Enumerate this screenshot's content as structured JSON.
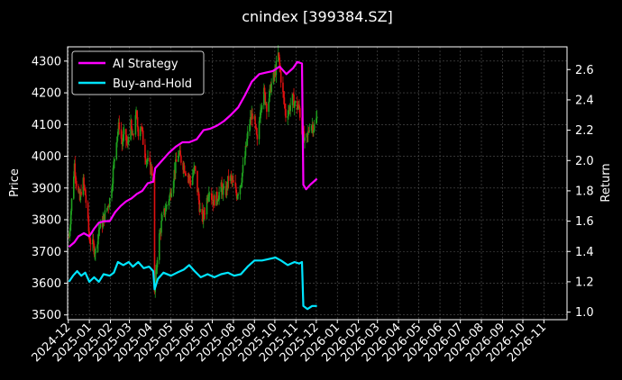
{
  "chart_data": {
    "type": "line",
    "title": "cnindex [399384.SZ]",
    "ylabel_left": "Price",
    "ylabel_right": "Return",
    "left_ylim": [
      3485,
      4345
    ],
    "right_ylim": [
      0.95,
      2.75
    ],
    "left_yticks": [
      3500,
      3600,
      3700,
      3800,
      3900,
      4000,
      4100,
      4200,
      4300
    ],
    "right_yticks": [
      1.0,
      1.2,
      1.4,
      1.6,
      1.8,
      2.0,
      2.2,
      2.4,
      2.6
    ],
    "x_range": [
      "2024-11-30",
      "2026-12-05"
    ],
    "x_ticks": [
      "2024-12",
      "2025-01",
      "2025-02",
      "2025-03",
      "2025-04",
      "2025-05",
      "2025-06",
      "2025-07",
      "2025-08",
      "2025-09",
      "2025-10",
      "2025-11",
      "2025-12",
      "2026-01",
      "2026-02",
      "2026-03",
      "2026-04",
      "2026-05",
      "2026-06",
      "2026-07",
      "2026-08",
      "2026-09",
      "2026-10",
      "2026-11"
    ],
    "grid": true,
    "legend_position": "top-left",
    "colors": {
      "up": "#1fa01f",
      "down": "#e01010",
      "strategy": "#ff00ff",
      "buyhold": "#00e5ff",
      "grid": "#555555",
      "text": "#ffffff"
    },
    "series": [
      {
        "name": "AI Strategy",
        "axis": "right",
        "points": [
          [
            "2024-12-02",
            1.43
          ],
          [
            "2024-12-10",
            1.46
          ],
          [
            "2024-12-16",
            1.5
          ],
          [
            "2024-12-24",
            1.52
          ],
          [
            "2025-01-01",
            1.5
          ],
          [
            "2025-01-08",
            1.55
          ],
          [
            "2025-01-15",
            1.59
          ],
          [
            "2025-01-23",
            1.6
          ],
          [
            "2025-01-31",
            1.6
          ],
          [
            "2025-02-08",
            1.66
          ],
          [
            "2025-02-16",
            1.7
          ],
          [
            "2025-02-24",
            1.73
          ],
          [
            "2025-03-04",
            1.75
          ],
          [
            "2025-03-12",
            1.78
          ],
          [
            "2025-03-20",
            1.8
          ],
          [
            "2025-03-28",
            1.85
          ],
          [
            "2025-04-05",
            1.86
          ],
          [
            "2025-04-08",
            1.95
          ],
          [
            "2025-04-18",
            2.0
          ],
          [
            "2025-04-28",
            2.05
          ],
          [
            "2025-05-08",
            2.09
          ],
          [
            "2025-05-18",
            2.12
          ],
          [
            "2025-05-28",
            2.12
          ],
          [
            "2025-06-08",
            2.14
          ],
          [
            "2025-06-18",
            2.2
          ],
          [
            "2025-06-28",
            2.21
          ],
          [
            "2025-07-08",
            2.23
          ],
          [
            "2025-07-18",
            2.26
          ],
          [
            "2025-07-28",
            2.3
          ],
          [
            "2025-08-08",
            2.35
          ],
          [
            "2025-08-18",
            2.43
          ],
          [
            "2025-08-28",
            2.52
          ],
          [
            "2025-09-08",
            2.57
          ],
          [
            "2025-09-18",
            2.58
          ],
          [
            "2025-09-28",
            2.59
          ],
          [
            "2025-10-08",
            2.62
          ],
          [
            "2025-10-18",
            2.57
          ],
          [
            "2025-10-28",
            2.61
          ],
          [
            "2025-11-03",
            2.65
          ],
          [
            "2025-11-10",
            2.64
          ],
          [
            "2025-11-12",
            1.84
          ],
          [
            "2025-11-16",
            1.81
          ],
          [
            "2025-11-22",
            1.84
          ],
          [
            "2025-12-02",
            1.88
          ]
        ]
      },
      {
        "name": "Buy-and-Hold",
        "axis": "right",
        "points": [
          [
            "2024-12-02",
            1.2
          ],
          [
            "2024-12-08",
            1.24
          ],
          [
            "2024-12-14",
            1.27
          ],
          [
            "2024-12-20",
            1.24
          ],
          [
            "2024-12-26",
            1.26
          ],
          [
            "2025-01-01",
            1.2
          ],
          [
            "2025-01-08",
            1.23
          ],
          [
            "2025-01-15",
            1.2
          ],
          [
            "2025-01-22",
            1.25
          ],
          [
            "2025-01-31",
            1.24
          ],
          [
            "2025-02-06",
            1.26
          ],
          [
            "2025-02-12",
            1.33
          ],
          [
            "2025-02-20",
            1.31
          ],
          [
            "2025-02-28",
            1.33
          ],
          [
            "2025-03-06",
            1.3
          ],
          [
            "2025-03-14",
            1.33
          ],
          [
            "2025-03-22",
            1.29
          ],
          [
            "2025-03-30",
            1.3
          ],
          [
            "2025-04-05",
            1.27
          ],
          [
            "2025-04-07",
            1.15
          ],
          [
            "2025-04-12",
            1.22
          ],
          [
            "2025-04-20",
            1.26
          ],
          [
            "2025-05-01",
            1.24
          ],
          [
            "2025-05-10",
            1.26
          ],
          [
            "2025-05-20",
            1.28
          ],
          [
            "2025-05-28",
            1.31
          ],
          [
            "2025-06-05",
            1.27
          ],
          [
            "2025-06-14",
            1.23
          ],
          [
            "2025-06-24",
            1.25
          ],
          [
            "2025-07-04",
            1.23
          ],
          [
            "2025-07-14",
            1.25
          ],
          [
            "2025-07-24",
            1.26
          ],
          [
            "2025-08-02",
            1.24
          ],
          [
            "2025-08-12",
            1.25
          ],
          [
            "2025-08-22",
            1.3
          ],
          [
            "2025-09-01",
            1.34
          ],
          [
            "2025-09-12",
            1.34
          ],
          [
            "2025-09-22",
            1.35
          ],
          [
            "2025-10-02",
            1.36
          ],
          [
            "2025-10-10",
            1.34
          ],
          [
            "2025-10-20",
            1.31
          ],
          [
            "2025-10-30",
            1.33
          ],
          [
            "2025-11-06",
            1.32
          ],
          [
            "2025-11-10",
            1.33
          ],
          [
            "2025-11-12",
            1.04
          ],
          [
            "2025-11-18",
            1.02
          ],
          [
            "2025-11-25",
            1.04
          ],
          [
            "2025-12-02",
            1.04
          ]
        ]
      }
    ],
    "candles_path": [
      [
        "2024-12-02",
        3745
      ],
      [
        "2024-12-06",
        3860
      ],
      [
        "2024-12-10",
        3975
      ],
      [
        "2024-12-14",
        3900
      ],
      [
        "2024-12-18",
        3860
      ],
      [
        "2024-12-22",
        3930
      ],
      [
        "2024-12-26",
        3880
      ],
      [
        "2025-01-01",
        3740
      ],
      [
        "2025-01-06",
        3720
      ],
      [
        "2025-01-10",
        3700
      ],
      [
        "2025-01-15",
        3770
      ],
      [
        "2025-01-20",
        3790
      ],
      [
        "2025-01-26",
        3830
      ],
      [
        "2025-02-01",
        3870
      ],
      [
        "2025-02-06",
        3975
      ],
      [
        "2025-02-10",
        4060
      ],
      [
        "2025-02-14",
        4100
      ],
      [
        "2025-02-18",
        4040
      ],
      [
        "2025-02-22",
        4075
      ],
      [
        "2025-02-26",
        4030
      ],
      [
        "2025-03-02",
        4110
      ],
      [
        "2025-03-06",
        4050
      ],
      [
        "2025-03-10",
        4140
      ],
      [
        "2025-03-14",
        4080
      ],
      [
        "2025-03-18",
        4100
      ],
      [
        "2025-03-22",
        4030
      ],
      [
        "2025-03-26",
        3990
      ],
      [
        "2025-04-01",
        3960
      ],
      [
        "2025-04-05",
        3950
      ],
      [
        "2025-04-07",
        3560
      ],
      [
        "2025-04-12",
        3720
      ],
      [
        "2025-04-18",
        3800
      ],
      [
        "2025-04-24",
        3840
      ],
      [
        "2025-04-30",
        3880
      ],
      [
        "2025-05-06",
        3950
      ],
      [
        "2025-05-12",
        4010
      ],
      [
        "2025-05-18",
        3980
      ],
      [
        "2025-05-24",
        3950
      ],
      [
        "2025-05-30",
        3920
      ],
      [
        "2025-06-05",
        3960
      ],
      [
        "2025-06-10",
        3880
      ],
      [
        "2025-06-15",
        3790
      ],
      [
        "2025-06-20",
        3830
      ],
      [
        "2025-06-26",
        3900
      ],
      [
        "2025-07-02",
        3860
      ],
      [
        "2025-07-08",
        3870
      ],
      [
        "2025-07-14",
        3900
      ],
      [
        "2025-07-20",
        3880
      ],
      [
        "2025-07-26",
        3940
      ],
      [
        "2025-08-01",
        3910
      ],
      [
        "2025-08-06",
        3880
      ],
      [
        "2025-08-12",
        3920
      ],
      [
        "2025-08-18",
        4000
      ],
      [
        "2025-08-24",
        4100
      ],
      [
        "2025-08-30",
        4140
      ],
      [
        "2025-09-05",
        4040
      ],
      [
        "2025-09-10",
        4160
      ],
      [
        "2025-09-15",
        4200
      ],
      [
        "2025-09-20",
        4150
      ],
      [
        "2025-09-25",
        4220
      ],
      [
        "2025-10-01",
        4260
      ],
      [
        "2025-10-06",
        4320
      ],
      [
        "2025-10-12",
        4210
      ],
      [
        "2025-10-17",
        4130
      ],
      [
        "2025-10-22",
        4150
      ],
      [
        "2025-10-27",
        4180
      ],
      [
        "2025-11-01",
        4160
      ],
      [
        "2025-11-06",
        4150
      ],
      [
        "2025-11-10",
        4080
      ],
      [
        "2025-11-14",
        4040
      ],
      [
        "2025-11-18",
        4060
      ],
      [
        "2025-11-22",
        4110
      ],
      [
        "2025-11-27",
        4090
      ],
      [
        "2025-12-02",
        4120
      ]
    ]
  }
}
